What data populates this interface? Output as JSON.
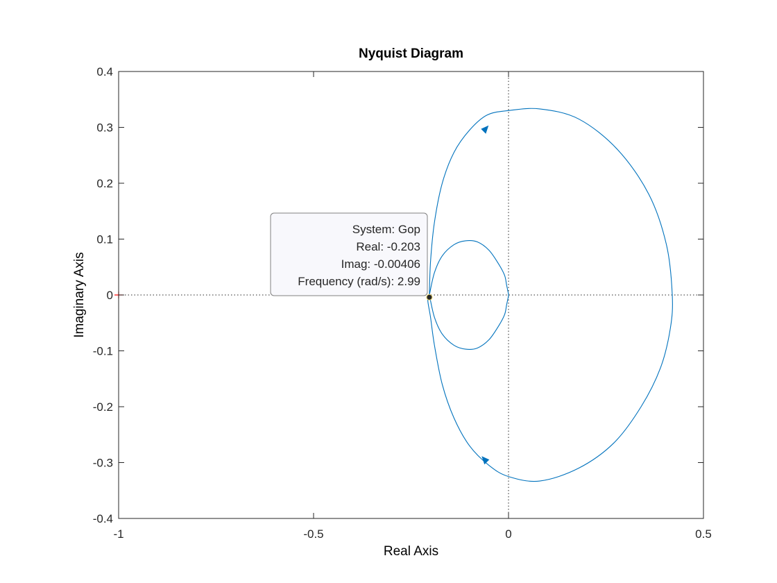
{
  "chart_data": {
    "type": "line",
    "title": "Nyquist Diagram",
    "xlabel": "Real Axis",
    "ylabel": "Imaginary Axis",
    "xlim": [
      -1,
      0.5
    ],
    "ylim": [
      -0.4,
      0.4
    ],
    "xticks": [
      -1,
      -0.5,
      0,
      0.5
    ],
    "xtick_labels": [
      "-1",
      "-0.5",
      "0",
      "0.5"
    ],
    "yticks": [
      0.4,
      0.3,
      0.2,
      0.1,
      0,
      -0.1,
      -0.2,
      -0.3,
      -0.4
    ],
    "ytick_labels": [
      "0.4",
      "0.3",
      "0.2",
      "0.1",
      "0",
      "-0.1",
      "-0.2",
      "-0.3",
      "-0.4"
    ],
    "grid": false,
    "reference_lines": {
      "x": 0,
      "y": 0,
      "style": "dotted"
    },
    "critical_point": {
      "x": -1,
      "y": 0,
      "marker": "+",
      "color": "#ff0000"
    },
    "line_color": "#0072bd",
    "series": [
      {
        "x": [
          -0.203,
          -0.2,
          -0.19,
          -0.17,
          -0.14,
          -0.1,
          -0.055,
          0.0,
          0.08,
          0.18,
          0.28,
          0.36,
          0.405,
          0.42,
          0.415,
          0.39,
          0.34,
          0.27,
          0.18,
          0.08,
          0.0,
          -0.05,
          -0.1,
          -0.14,
          -0.17,
          -0.19,
          -0.2,
          -0.207,
          -0.203
        ],
        "y": [
          0.0,
          0.06,
          0.13,
          0.2,
          0.255,
          0.295,
          0.322,
          0.33,
          0.333,
          0.315,
          0.26,
          0.18,
          0.09,
          0.0,
          -0.06,
          -0.13,
          -0.2,
          -0.265,
          -0.31,
          -0.333,
          -0.325,
          -0.305,
          -0.27,
          -0.22,
          -0.16,
          -0.09,
          -0.04,
          -0.01,
          0.0
        ]
      },
      {
        "x": [
          -0.203,
          -0.19,
          -0.17,
          -0.14,
          -0.11,
          -0.08,
          -0.05,
          -0.025,
          -0.01,
          -0.005,
          -0.002,
          0.0,
          -0.002,
          -0.005,
          -0.01,
          -0.025,
          -0.05,
          -0.08,
          -0.11,
          -0.14,
          -0.17,
          -0.19,
          -0.203
        ],
        "y": [
          0.0,
          0.04,
          0.07,
          0.09,
          0.097,
          0.095,
          0.08,
          0.055,
          0.035,
          0.018,
          0.008,
          0.0,
          -0.008,
          -0.018,
          -0.035,
          -0.055,
          -0.08,
          -0.095,
          -0.097,
          -0.09,
          -0.07,
          -0.04,
          0.0
        ]
      }
    ],
    "arrows": [
      {
        "x": -0.06,
        "y": 0.296,
        "direction": "right"
      },
      {
        "x": -0.06,
        "y": -0.296,
        "direction": "left"
      }
    ],
    "datatip": {
      "point": {
        "x": -0.203,
        "y": -0.00406
      },
      "lines": [
        "System: Gop",
        "Real: -0.203",
        "Imag: -0.00406",
        "Frequency (rad/s): 2.99"
      ]
    }
  }
}
